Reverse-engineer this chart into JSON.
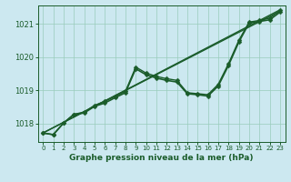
{
  "background_color": "#cce8f0",
  "plot_bg_color": "#cce8f0",
  "grid_color": "#99ccbb",
  "line_color": "#1a5c2a",
  "marker_color": "#1a5c2a",
  "xlabel": "Graphe pression niveau de la mer (hPa)",
  "xlim": [
    -0.5,
    23.5
  ],
  "ylim": [
    1017.45,
    1021.55
  ],
  "yticks": [
    1018,
    1019,
    1020,
    1021
  ],
  "xticks": [
    0,
    1,
    2,
    3,
    4,
    5,
    6,
    7,
    8,
    9,
    10,
    11,
    12,
    13,
    14,
    15,
    16,
    17,
    18,
    19,
    20,
    21,
    22,
    23
  ],
  "series_lines": [
    {
      "x": [
        0,
        23
      ],
      "y": [
        1017.72,
        1021.38
      ],
      "linewidth": 1.0
    },
    {
      "x": [
        0,
        23
      ],
      "y": [
        1017.72,
        1021.42
      ],
      "linewidth": 1.0
    }
  ],
  "series_marked": [
    {
      "x": [
        0,
        1,
        2,
        3,
        4,
        5,
        6,
        7,
        8,
        9,
        10,
        11,
        12,
        13,
        14,
        15,
        16,
        17,
        18,
        19,
        20,
        21,
        22,
        23
      ],
      "y": [
        1017.72,
        1017.67,
        1018.02,
        1018.28,
        1018.32,
        1018.52,
        1018.62,
        1018.78,
        1018.93,
        1019.65,
        1019.47,
        1019.37,
        1019.3,
        1019.25,
        1018.9,
        1018.87,
        1018.83,
        1019.13,
        1019.75,
        1020.45,
        1021.02,
        1021.07,
        1021.12,
        1021.35
      ],
      "linewidth": 1.2,
      "markersize": 2.5
    },
    {
      "x": [
        0,
        1,
        2,
        3,
        4,
        5,
        6,
        7,
        8,
        9,
        10,
        11,
        12,
        13,
        14,
        15,
        16,
        17,
        18,
        19,
        20,
        21,
        22,
        23
      ],
      "y": [
        1017.72,
        1017.67,
        1018.02,
        1018.28,
        1018.35,
        1018.55,
        1018.67,
        1018.82,
        1018.97,
        1019.7,
        1019.52,
        1019.42,
        1019.35,
        1019.3,
        1018.93,
        1018.9,
        1018.87,
        1019.18,
        1019.8,
        1020.5,
        1021.05,
        1021.1,
        1021.17,
        1021.4
      ],
      "linewidth": 1.0,
      "markersize": 2.5
    }
  ]
}
